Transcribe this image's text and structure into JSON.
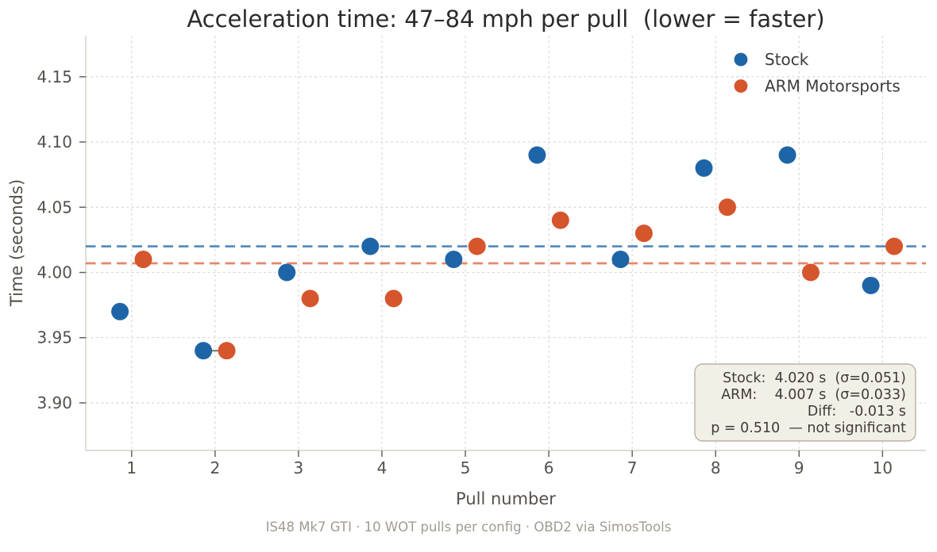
{
  "chart_data": {
    "type": "scatter",
    "title": "Acceleration time: 47–84 mph per pull  (lower = faster)",
    "xlabel": "Pull number",
    "ylabel": "Time (seconds)",
    "caption": "IS48 Mk7 GTI · 10 WOT pulls per config · OBD2 via SimosTools",
    "x": [
      1,
      2,
      3,
      4,
      5,
      6,
      7,
      8,
      9,
      10
    ],
    "series": [
      {
        "name": "Stock",
        "color": "#1e65a7",
        "values": [
          3.97,
          3.94,
          4.0,
          4.02,
          4.01,
          4.09,
          4.01,
          4.08,
          4.09,
          3.99
        ],
        "mean": 4.02,
        "sigma": 0.051,
        "mean_line_opacity": 0.75,
        "point_offset": -0.14
      },
      {
        "name": "ARM Motorsports",
        "color": "#d5552c",
        "values": [
          4.01,
          3.94,
          3.98,
          3.98,
          4.02,
          4.04,
          4.03,
          4.05,
          4.0,
          4.02
        ],
        "mean": 4.007,
        "sigma": 0.033,
        "mean_line_opacity": 0.7,
        "point_offset": 0.14
      }
    ],
    "connector": {
      "pull": 2,
      "value": 3.94
    },
    "x_ticks": [
      {
        "v": 1,
        "label": "1"
      },
      {
        "v": 2,
        "label": "2"
      },
      {
        "v": 3,
        "label": "3"
      },
      {
        "v": 4,
        "label": "4"
      },
      {
        "v": 5,
        "label": "5"
      },
      {
        "v": 6,
        "label": "6"
      },
      {
        "v": 7,
        "label": "7"
      },
      {
        "v": 8,
        "label": "8"
      },
      {
        "v": 9,
        "label": "9"
      },
      {
        "v": 10,
        "label": "10"
      }
    ],
    "y_ticks": [
      {
        "v": 3.9,
        "label": "3.90"
      },
      {
        "v": 3.95,
        "label": "3.95"
      },
      {
        "v": 4.0,
        "label": "4.00"
      },
      {
        "v": 4.05,
        "label": "4.05"
      },
      {
        "v": 4.1,
        "label": "4.10"
      },
      {
        "v": 4.15,
        "label": "4.15"
      }
    ],
    "xlim": [
      0.45,
      10.52
    ],
    "ylim": [
      3.8635,
      4.1815
    ],
    "grid": true,
    "point_radius": 11,
    "legend": {
      "position": "upper right",
      "labels": [
        "Stock",
        "ARM Motorsports"
      ]
    },
    "stats_box": {
      "lines": [
        "Stock:  4.020 s  (σ=0.051)",
        "ARM:    4.007 s  (σ=0.033)",
        "Diff:   -0.013 s",
        "p = 0.510  — not significant"
      ]
    }
  },
  "colors": {
    "stock_blue": "#1e65a7",
    "arm_orange": "#d5552c",
    "grid": "#d9d5cb",
    "background": "#ffffff",
    "stats_box_bg": "#f2efe7",
    "stats_box_border": "#b8b2a6"
  }
}
